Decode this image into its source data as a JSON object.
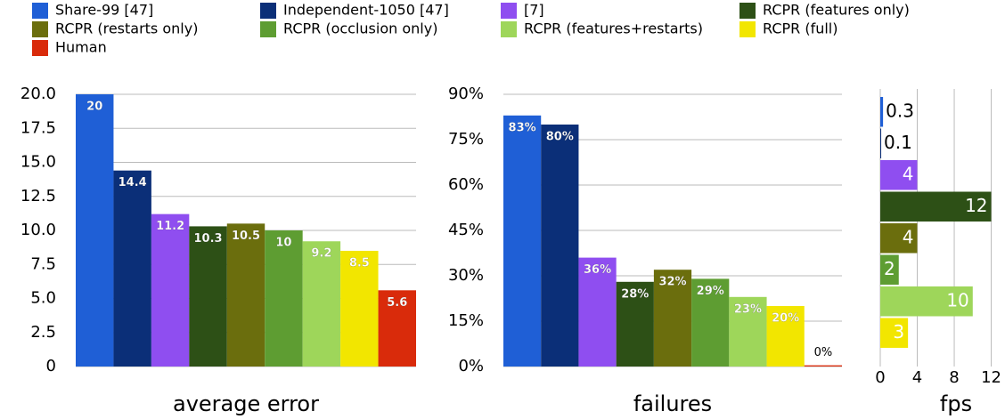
{
  "legend": {
    "items": [
      {
        "name": "Share-99 [47]",
        "color": "#1f5fd6"
      },
      {
        "name": "Independent-1050 [47]",
        "color": "#0b2f78"
      },
      {
        "name": "[7]",
        "color": "#8f4ef0"
      },
      {
        "name": "RCPR (features only)",
        "color": "#2d5016"
      },
      {
        "name": "RCPR (restarts only)",
        "color": "#6b6e0d"
      },
      {
        "name": "RCPR (occlusion only)",
        "color": "#5e9d32"
      },
      {
        "name": "RCPR (features+restarts)",
        "color": "#9ed65a"
      },
      {
        "name": "RCPR (full)",
        "color": "#f2e600"
      },
      {
        "name": "Human",
        "color": "#d92b0b"
      }
    ]
  },
  "chart_data": [
    {
      "type": "bar",
      "xlabel": "average error",
      "values": [
        20,
        14.4,
        11.2,
        10.3,
        10.5,
        10,
        9.2,
        8.5,
        5.6
      ],
      "ylim": [
        0,
        20
      ],
      "yticks": [
        0,
        2.5,
        {
          "value": 5,
          "label": "5.0"
        },
        7.5,
        {
          "value": 10,
          "label": "10.0"
        },
        12.5,
        {
          "value": 15,
          "label": "15.0"
        },
        17.5,
        {
          "value": 20,
          "label": "20.0"
        }
      ],
      "grid": true
    },
    {
      "type": "bar",
      "xlabel": "failures",
      "values": [
        83,
        80,
        36,
        28,
        32,
        29,
        23,
        20,
        0.4
      ],
      "value_labels": [
        "83%",
        "80%",
        "36%",
        "28%",
        "32%",
        "29%",
        "23%",
        "20%",
        "0%"
      ],
      "ylim": [
        0,
        90
      ],
      "yticks": [
        {
          "value": 0,
          "label": "0%"
        },
        {
          "value": 15,
          "label": "15%"
        },
        {
          "value": 30,
          "label": "30%"
        },
        {
          "value": 45,
          "label": "45%"
        },
        {
          "value": 60,
          "label": "60%"
        },
        {
          "value": 75,
          "label": "75%"
        },
        {
          "value": 90,
          "label": "90%"
        }
      ],
      "grid": true
    },
    {
      "type": "barh",
      "xlabel": "fps",
      "values": [
        0.3,
        0.1,
        4,
        12,
        4,
        2,
        10,
        3
      ],
      "xlim": [
        0,
        13.2
      ],
      "xticks": [
        0,
        4,
        8,
        12
      ],
      "grid": true
    }
  ]
}
